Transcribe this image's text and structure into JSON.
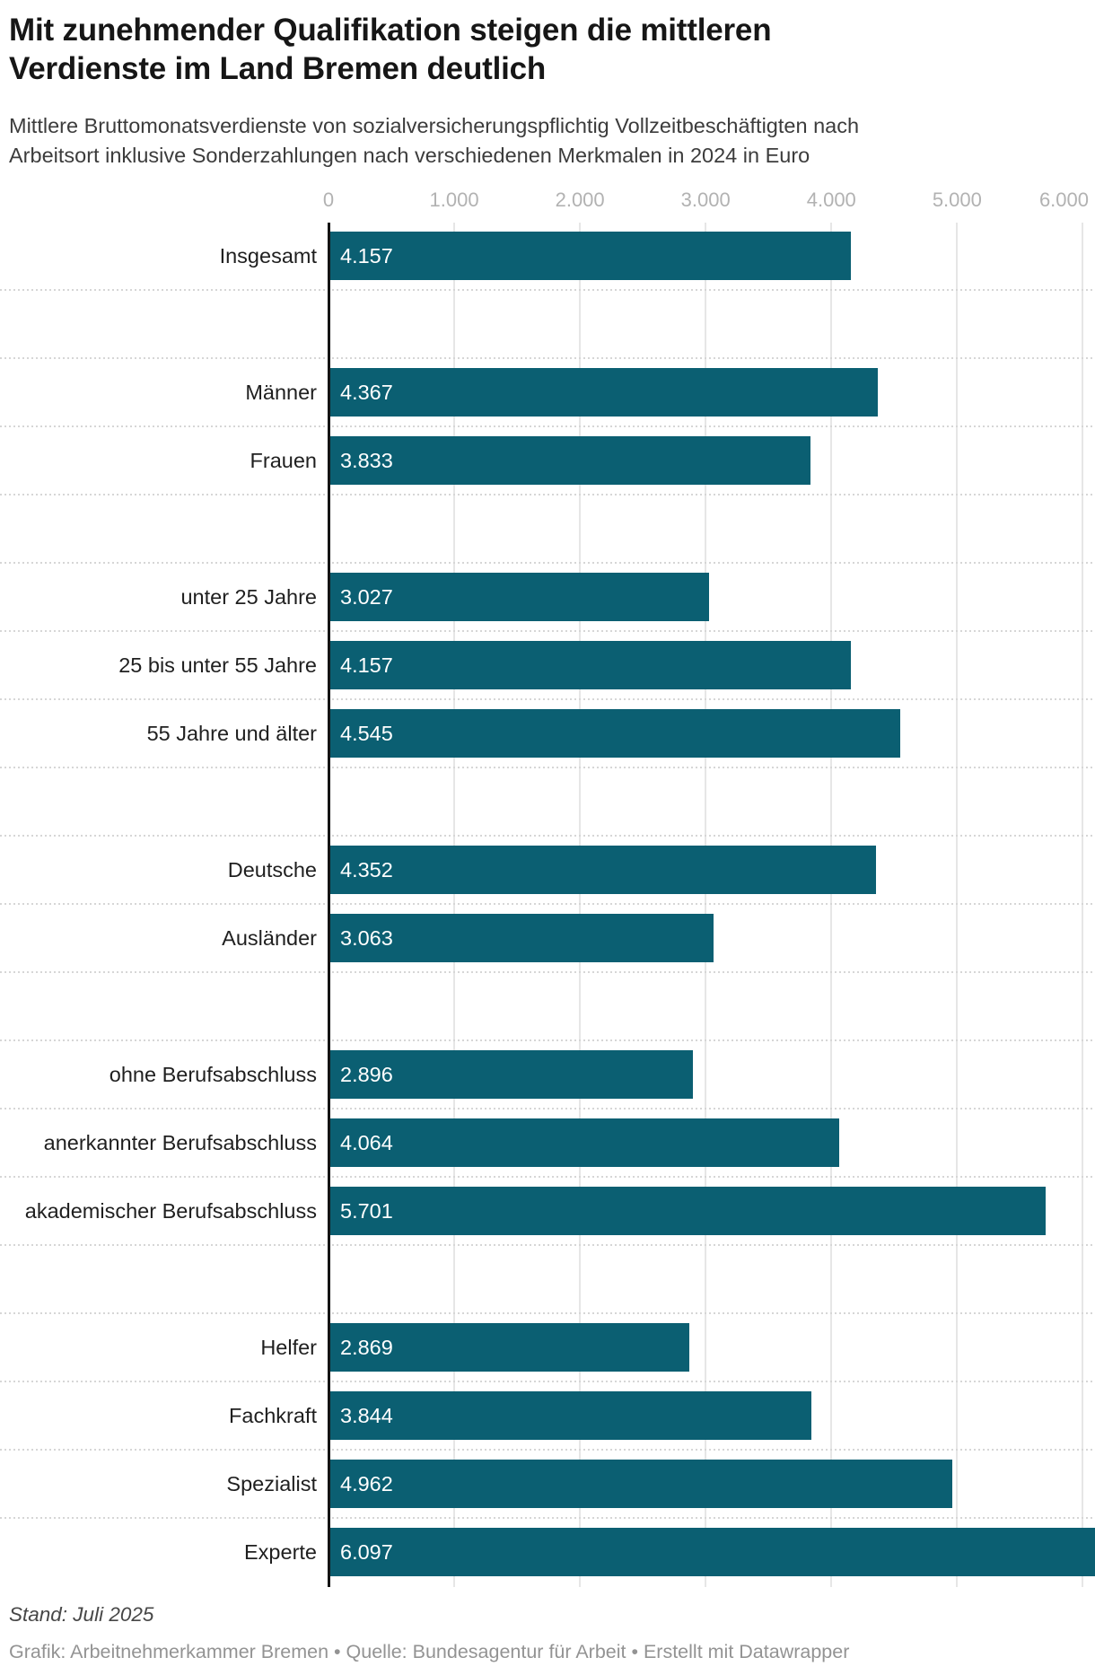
{
  "header": {
    "title_lines": [
      "Mit zunehmender Qualifikation steigen die mittleren",
      "Verdienste im Land Bremen deutlich"
    ],
    "subtitle_lines": [
      "Mittlere Bruttomonatsverdienste von sozialversicherungspflichtig Vollzeitbeschäftigten nach",
      "Arbeitsort inklusive Sonderzahlungen nach verschiedenen Merkmalen in 2024 in Euro"
    ]
  },
  "chart_data": {
    "type": "bar",
    "orientation": "horizontal",
    "title": "Mit zunehmender Qualifikation steigen die mittleren Verdienste im Land Bremen deutlich",
    "subtitle": "Mittlere Bruttomonatsverdienste von sozialversicherungspflichtig Vollzeitbeschäftigten nach Arbeitsort inklusive Sonderzahlungen nach verschiedenen Merkmalen in 2024 in Euro",
    "xlabel": "",
    "ylabel": "",
    "unit": "Euro",
    "xlim": [
      0,
      6097
    ],
    "grid": "vertical",
    "bar_color": "#0b5f72",
    "value_label_color": "#ffffff",
    "ticks": [
      {
        "value": 0,
        "label": "0"
      },
      {
        "value": 1000,
        "label": "1.000"
      },
      {
        "value": 2000,
        "label": "2.000"
      },
      {
        "value": 3000,
        "label": "3.000"
      },
      {
        "value": 4000,
        "label": "4.000"
      },
      {
        "value": 5000,
        "label": "5.000"
      },
      {
        "value": 6000,
        "label": "6.000"
      }
    ],
    "groups": [
      {
        "rows": [
          {
            "label": "Insgesamt",
            "value": 4157,
            "display": "4.157"
          }
        ]
      },
      {
        "rows": [
          {
            "label": "Männer",
            "value": 4367,
            "display": "4.367"
          },
          {
            "label": "Frauen",
            "value": 3833,
            "display": "3.833"
          }
        ]
      },
      {
        "rows": [
          {
            "label": "unter 25 Jahre",
            "value": 3027,
            "display": "3.027"
          },
          {
            "label": "25 bis unter 55 Jahre",
            "value": 4157,
            "display": "4.157"
          },
          {
            "label": "55 Jahre und älter",
            "value": 4545,
            "display": "4.545"
          }
        ]
      },
      {
        "rows": [
          {
            "label": "Deutsche",
            "value": 4352,
            "display": "4.352"
          },
          {
            "label": "Ausländer",
            "value": 3063,
            "display": "3.063"
          }
        ]
      },
      {
        "rows": [
          {
            "label": "ohne Berufsabschluss",
            "value": 2896,
            "display": "2.896"
          },
          {
            "label": "anerkannter Berufsabschluss",
            "value": 4064,
            "display": "4.064"
          },
          {
            "label": "akademischer Berufsabschluss",
            "value": 5701,
            "display": "5.701"
          }
        ]
      },
      {
        "rows": [
          {
            "label": "Helfer",
            "value": 2869,
            "display": "2.869"
          },
          {
            "label": "Fachkraft",
            "value": 3844,
            "display": "3.844"
          },
          {
            "label": "Spezialist",
            "value": 4962,
            "display": "4.962"
          },
          {
            "label": "Experte",
            "value": 6097,
            "display": "6.097"
          }
        ]
      }
    ]
  },
  "footer": {
    "stand": "Stand: Juli 2025",
    "credits": "Grafik: Arbeitnehmerkammer Bremen • Quelle: Bundesagentur für Arbeit • Erstellt mit Datawrapper"
  }
}
